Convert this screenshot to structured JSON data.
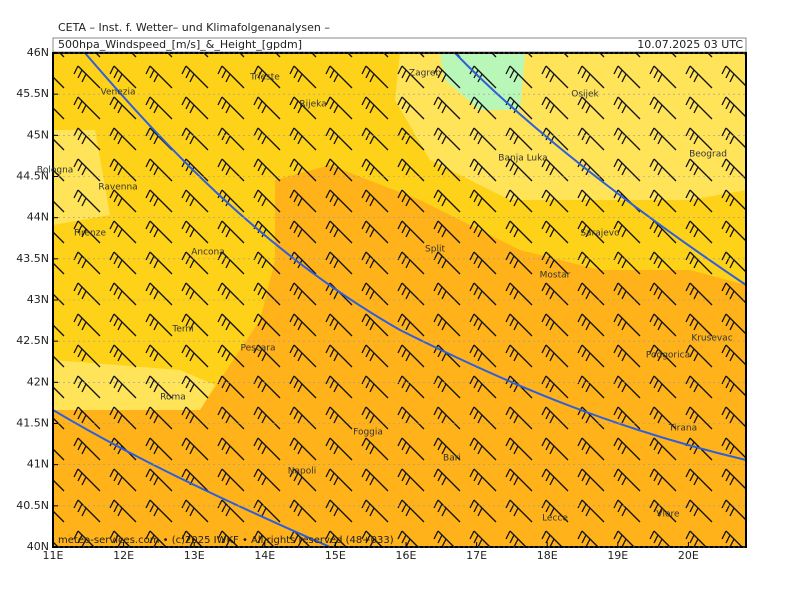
{
  "header": {
    "institute": "CETA – Inst. f. Wetter– und Klimafolgenanalysen –",
    "product": "500hpa_Windspeed_[m/s]_&_Height_[gpdm]",
    "valid": "10.07.2025 03 UTC"
  },
  "axes": {
    "lat": [
      "46N",
      "45.5N",
      "45N",
      "44.5N",
      "44N",
      "43.5N",
      "43N",
      "42.5N",
      "42N",
      "41.5N",
      "41N",
      "40.5N",
      "40N"
    ],
    "lon": [
      "11E",
      "12E",
      "13E",
      "14E",
      "15E",
      "16E",
      "17E",
      "18E",
      "19E",
      "20E"
    ]
  },
  "cities": [
    "Trieste",
    "Venezia",
    "Zagreb",
    "Rijeka",
    "Osijek",
    "Bologna",
    "Ravenna",
    "Banja Luka",
    "Beograd",
    "Firenze",
    "Sarajevo",
    "Ancona",
    "Split",
    "Mostar",
    "Terni",
    "Pescara",
    "Podgorica",
    "Krusevac",
    "Roma",
    "Tirana",
    "Foggia",
    "Bari",
    "Napoli",
    "Lecce",
    "Vlore"
  ],
  "footer": "meteo-services.com • (c)2025 IWKF • All rights reserved (48+033)"
}
